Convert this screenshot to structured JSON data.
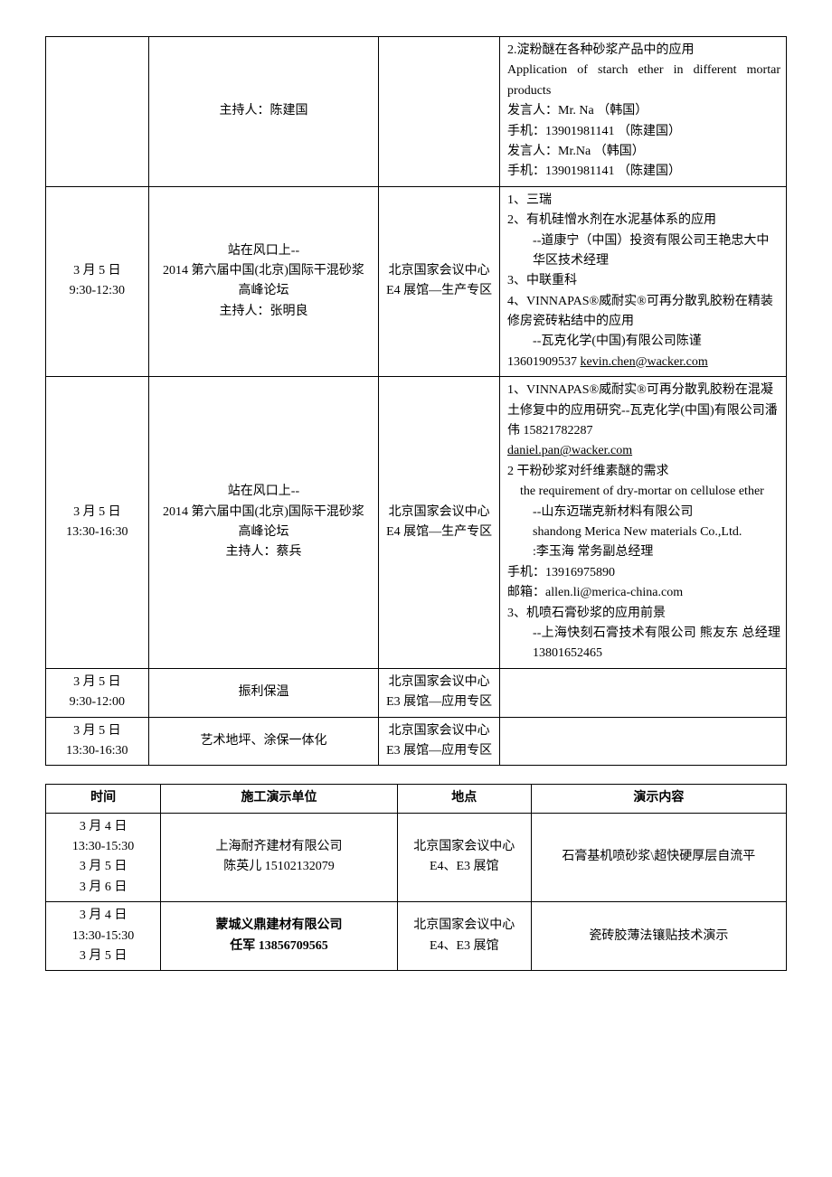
{
  "table1": {
    "rows": [
      {
        "time": "",
        "topic": "主持人：陈建国",
        "loc": "",
        "detail_lines": [
          {
            "text": "2.淀粉醚在各种砂浆产品中的应用",
            "cls": "left"
          },
          {
            "text": "Application of starch ether in different mortar products",
            "cls": "justify"
          },
          {
            "text": "发言人：Mr. Na （韩国）",
            "cls": "left"
          },
          {
            "text": "手机：13901981141 （陈建国）",
            "cls": "left"
          },
          {
            "text": "发言人：Mr.Na （韩国）",
            "cls": "left"
          },
          {
            "text": "手机：13901981141 （陈建国）",
            "cls": "left"
          }
        ]
      },
      {
        "time": "3 月 5 日\n9:30-12:30",
        "topic": "站在风口上--\n2014 第六届中国(北京)国际干混砂浆\n高峰论坛\n主持人：张明良",
        "loc": "北京国家会议中心 E4 展馆—生产专区",
        "detail_lines": [
          {
            "text": "1、三瑞",
            "cls": "left"
          },
          {
            "text": "2、有机硅憎水剂在水泥基体系的应用",
            "cls": "left"
          },
          {
            "text": "--道康宁（中国）投资有限公司王艳忠大中华区技术经理",
            "cls": "left indent2"
          },
          {
            "text": "3、中联重科",
            "cls": "left"
          },
          {
            "text": "4、VINNAPAS®威耐实®可再分散乳胶粉在精装修房瓷砖粘结中的应用",
            "cls": "left"
          },
          {
            "text": "--瓦克化学(中国)有限公司陈谨",
            "cls": "left indent2"
          },
          {
            "text": "13601909537 ",
            "cls": "left",
            "suffix_underline": "kevin.chen@wacker.com"
          }
        ]
      },
      {
        "time": "3 月 5 日\n13:30-16:30",
        "topic": "站在风口上--\n2014 第六届中国(北京)国际干混砂浆\n高峰论坛\n主持人：蔡兵",
        "loc": "北京国家会议中心 E4 展馆—生产专区",
        "detail_lines": [
          {
            "text": "1、VINNAPAS®威耐实®可再分散乳胶粉在混凝土修复中的应用研究--瓦克化学(中国)有限公司潘伟 15821782287",
            "cls": "left"
          },
          {
            "text": "daniel.pan@wacker.com",
            "cls": "left underline"
          },
          {
            "text": "2 干粉砂浆对纤维素醚的需求",
            "cls": "left"
          },
          {
            "text": "the requirement of dry-mortar on cellulose ether",
            "cls": "justify indent"
          },
          {
            "text": "--山东迈瑞克新材料有限公司",
            "cls": "left indent2"
          },
          {
            "text": "shandong Merica New materials Co.,Ltd.",
            "cls": "justify indent2"
          },
          {
            "text": ":李玉海  常务副总经理",
            "cls": "left indent2"
          },
          {
            "text": "手机：13916975890",
            "cls": "left"
          },
          {
            "text": "邮箱：allen.li@merica-china.com",
            "cls": "left"
          },
          {
            "text": "3、机喷石膏砂浆的应用前景",
            "cls": "left"
          },
          {
            "text": "--上海快刻石膏技术有限公司  熊友东  总经理 13801652465",
            "cls": "justify indent2"
          }
        ]
      },
      {
        "time": "3 月 5 日\n9:30-12:00",
        "topic": "振利保温",
        "loc": "北京国家会议中心 E3 展馆—应用专区",
        "detail_lines": []
      },
      {
        "time": "3 月 5 日\n13:30-16:30",
        "topic": "艺术地坪、涂保一体化",
        "loc": "北京国家会议中心 E3 展馆—应用专区",
        "detail_lines": []
      }
    ]
  },
  "table2": {
    "headers": {
      "time": "时间",
      "unit": "施工演示单位",
      "loc": "地点",
      "content": "演示内容"
    },
    "rows": [
      {
        "time": "3 月 4 日\n13:30-15:30\n3 月 5 日\n3 月 6 日",
        "unit": "上海耐齐建材有限公司\n陈英儿 15102132079",
        "unit_bold": false,
        "loc": "北京国家会议中心 E4、E3 展馆",
        "content": "石膏基机喷砂浆\\超快硬厚层自流平"
      },
      {
        "time": "3 月 4 日\n13:30-15:30\n3 月 5 日",
        "unit": "蒙城义鼎建材有限公司\n任军 13856709565",
        "unit_bold": true,
        "loc": "北京国家会议中心 E4、E3 展馆",
        "content": "瓷砖胶薄法镶贴技术演示"
      }
    ]
  }
}
